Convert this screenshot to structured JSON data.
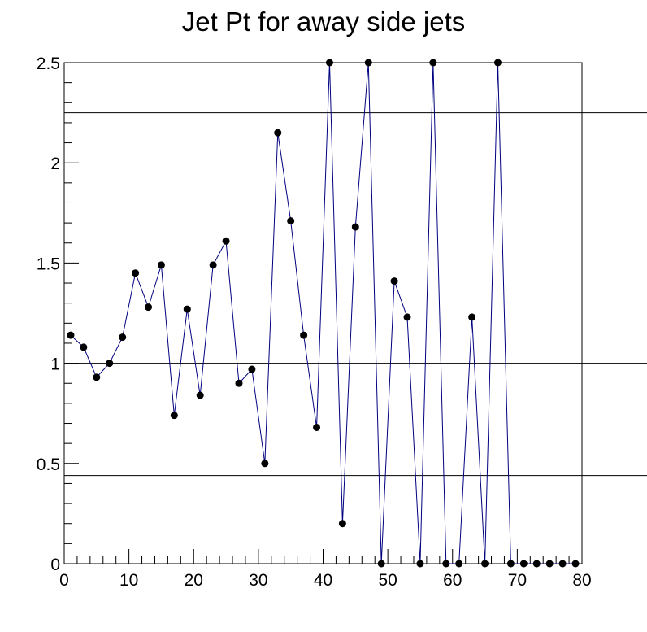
{
  "chart_data": {
    "type": "line",
    "title": "Jet Pt for away side jets",
    "xlabel": "",
    "ylabel": "",
    "xlim": [
      0,
      80
    ],
    "ylim": [
      0,
      2.5
    ],
    "x_ticks": [
      "0",
      "10",
      "20",
      "30",
      "40",
      "50",
      "60",
      "70",
      "80"
    ],
    "y_ticks": [
      "0",
      "0.5",
      "1",
      "1.5",
      "2",
      "2.5"
    ],
    "reference_lines_y": [
      0.44,
      1.0,
      2.25
    ],
    "colors": {
      "line": "#000080",
      "marker": "#000000",
      "reference": "#000000"
    },
    "series": [
      {
        "x": [
          1,
          3,
          5,
          7,
          9,
          11,
          13,
          15,
          17,
          19,
          21,
          23,
          25,
          27,
          29,
          31,
          33,
          35,
          37,
          39,
          41,
          43,
          45,
          47,
          49,
          51,
          53,
          55,
          57,
          59,
          61,
          63,
          65,
          67,
          69,
          71,
          73,
          75,
          77,
          79
        ],
        "y": [
          1.14,
          1.08,
          0.93,
          1.0,
          1.13,
          1.45,
          1.28,
          1.49,
          0.74,
          1.27,
          0.84,
          1.49,
          1.61,
          0.9,
          0.97,
          0.5,
          2.15,
          1.71,
          1.14,
          0.68,
          2.5,
          0.2,
          1.68,
          2.5,
          0.0,
          1.41,
          1.23,
          0.0,
          2.5,
          0.0,
          0.0,
          1.23,
          0.0,
          2.5,
          0.0,
          0.0,
          0.0,
          0.0,
          0.0,
          0.0
        ]
      }
    ]
  }
}
